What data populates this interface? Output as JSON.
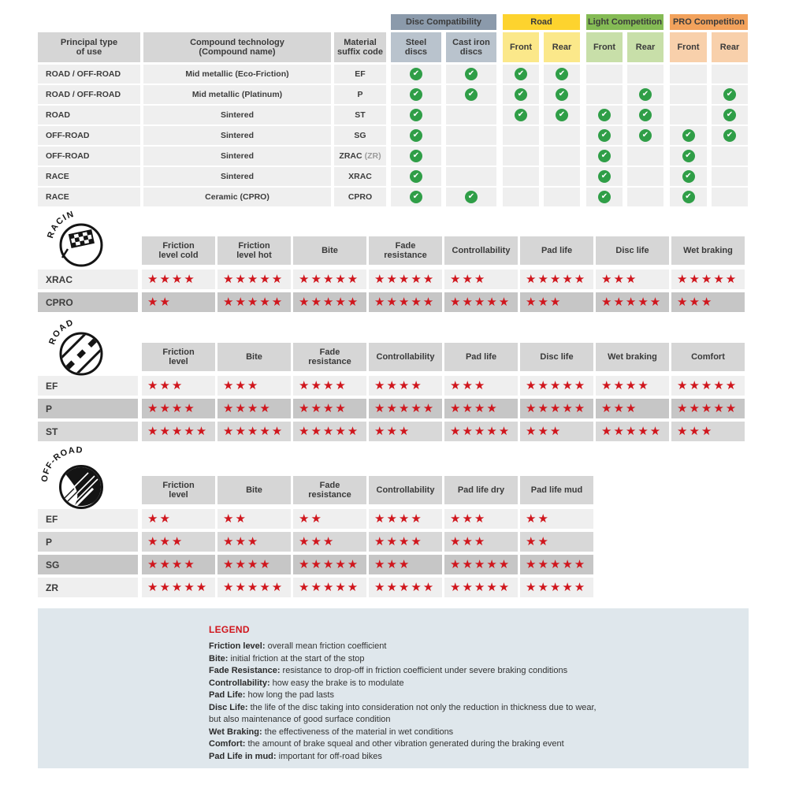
{
  "colors": {
    "star_red": "#d0161d",
    "check_green": "#2f9e47",
    "disc_group_bg": "#8b9aab",
    "disc_sub_bg": "#b9c3cd",
    "road_group_bg": "#fdd32e",
    "road_sub_bg": "#fbe88a",
    "light_group_bg": "#85bb55",
    "light_sub_bg": "#c8dfa9",
    "pro_group_bg": "#f2a25c",
    "pro_sub_bg": "#f8d0ab",
    "header_cell_bg": "#d6d6d6",
    "row_light_bg": "#efefef",
    "row_mid_bg": "#d8d8d8",
    "row_dark_bg": "#c6c6c6",
    "legend_bg": "#dfe7ec"
  },
  "compat": {
    "group_headers": [
      {
        "label": "Disc Compatibility"
      },
      {
        "label": "Road"
      },
      {
        "label": "Light Competition"
      },
      {
        "label": "PRO Competition"
      }
    ],
    "main_headers": [
      {
        "lines": [
          "Principal type",
          "of use"
        ]
      },
      {
        "lines": [
          "Compound technology",
          "(Compound name)"
        ]
      },
      {
        "lines": [
          "Material",
          "suffix code"
        ]
      }
    ],
    "sub_headers": [
      {
        "lines": [
          "Steel",
          "discs"
        ]
      },
      {
        "lines": [
          "Cast iron",
          "discs"
        ]
      },
      {
        "lines": [
          "Front"
        ]
      },
      {
        "lines": [
          "Rear"
        ]
      },
      {
        "lines": [
          "Front"
        ]
      },
      {
        "lines": [
          "Rear"
        ]
      },
      {
        "lines": [
          "Front"
        ]
      },
      {
        "lines": [
          "Rear"
        ]
      }
    ],
    "check_glyph": "✔",
    "rows": [
      {
        "use": "ROAD / OFF-ROAD",
        "technology": "Mid metallic (Eco-Friction)",
        "code": "EF",
        "code_note": "",
        "checks": [
          1,
          1,
          1,
          1,
          0,
          0,
          0,
          0
        ]
      },
      {
        "use": "ROAD / OFF-ROAD",
        "technology": "Mid metallic (Platinum)",
        "code": "P",
        "code_note": "",
        "checks": [
          1,
          1,
          1,
          1,
          0,
          1,
          0,
          1
        ]
      },
      {
        "use": "ROAD",
        "technology": "Sintered",
        "code": "ST",
        "code_note": "",
        "checks": [
          1,
          0,
          1,
          1,
          1,
          1,
          0,
          1
        ]
      },
      {
        "use": "OFF-ROAD",
        "technology": "Sintered",
        "code": "SG",
        "code_note": "",
        "checks": [
          1,
          0,
          0,
          0,
          1,
          1,
          1,
          1
        ]
      },
      {
        "use": "OFF-ROAD",
        "technology": "Sintered",
        "code": "ZRAC",
        "code_note": "(ZR)",
        "checks": [
          1,
          0,
          0,
          0,
          1,
          0,
          1,
          0
        ]
      },
      {
        "use": "RACE",
        "technology": "Sintered",
        "code": "XRAC",
        "code_note": "",
        "checks": [
          1,
          0,
          0,
          0,
          1,
          0,
          1,
          0
        ]
      },
      {
        "use": "RACE",
        "technology": "Ceramic (CPRO)",
        "code": "CPRO",
        "code_note": "",
        "checks": [
          1,
          1,
          0,
          0,
          1,
          0,
          1,
          0
        ]
      }
    ]
  },
  "rating_tables": [
    {
      "id": "racing",
      "badge": "RACING",
      "columns": [
        {
          "lines": [
            "Friction",
            "level cold"
          ]
        },
        {
          "lines": [
            "Friction",
            "level hot"
          ]
        },
        {
          "lines": [
            "Bite"
          ]
        },
        {
          "lines": [
            "Fade",
            "resistance"
          ]
        },
        {
          "lines": [
            "Controllability"
          ]
        },
        {
          "lines": [
            "Pad life"
          ]
        },
        {
          "lines": [
            "Disc life"
          ]
        },
        {
          "lines": [
            "Wet braking"
          ]
        }
      ],
      "max_stars": 5,
      "rows": [
        {
          "code": "XRAC",
          "shade": "light",
          "stars": [
            4,
            5,
            5,
            5,
            3,
            5,
            3,
            5
          ]
        },
        {
          "code": "CPRO",
          "shade": "dark",
          "stars": [
            2,
            5,
            5,
            5,
            5,
            3,
            5,
            3
          ]
        }
      ]
    },
    {
      "id": "road",
      "badge": "ROAD",
      "columns": [
        {
          "lines": [
            "Friction",
            "level"
          ]
        },
        {
          "lines": [
            "Bite"
          ]
        },
        {
          "lines": [
            "Fade",
            "resistance"
          ]
        },
        {
          "lines": [
            "Controllability"
          ]
        },
        {
          "lines": [
            "Pad life"
          ]
        },
        {
          "lines": [
            "Disc life"
          ]
        },
        {
          "lines": [
            "Wet braking"
          ]
        },
        {
          "lines": [
            "Comfort"
          ]
        }
      ],
      "max_stars": 5,
      "rows": [
        {
          "code": "EF",
          "shade": "light",
          "stars": [
            3,
            3,
            4,
            4,
            3,
            5,
            4,
            5
          ]
        },
        {
          "code": "P",
          "shade": "dark",
          "stars": [
            4,
            4,
            4,
            5,
            4,
            5,
            3,
            5
          ]
        },
        {
          "code": "ST",
          "shade": "mid",
          "stars": [
            5,
            5,
            5,
            3,
            5,
            3,
            5,
            3
          ]
        }
      ]
    },
    {
      "id": "offroad",
      "badge": "OFF-ROAD",
      "columns": [
        {
          "lines": [
            "Friction",
            "level"
          ]
        },
        {
          "lines": [
            "Bite"
          ]
        },
        {
          "lines": [
            "Fade",
            "resistance"
          ]
        },
        {
          "lines": [
            "Controllability"
          ]
        },
        {
          "lines": [
            "Pad life dry"
          ]
        },
        {
          "lines": [
            "Pad life mud"
          ]
        }
      ],
      "max_stars": 5,
      "rows": [
        {
          "code": "EF",
          "shade": "light",
          "stars": [
            2,
            2,
            2,
            4,
            3,
            2
          ]
        },
        {
          "code": "P",
          "shade": "mid",
          "stars": [
            3,
            3,
            3,
            4,
            3,
            2
          ]
        },
        {
          "code": "SG",
          "shade": "dark",
          "stars": [
            4,
            4,
            5,
            3,
            5,
            5
          ]
        },
        {
          "code": "ZR",
          "shade": "light",
          "stars": [
            5,
            5,
            5,
            5,
            5,
            5
          ]
        }
      ]
    }
  ],
  "legend": {
    "title": "LEGEND",
    "items": [
      {
        "term": "Friction level",
        "desc": "overall mean friction coefficient"
      },
      {
        "term": "Bite",
        "desc": "initial friction at the start of the stop"
      },
      {
        "term": "Fade Resistance",
        "desc": "resistance to drop-off in friction coefficient under severe braking conditions"
      },
      {
        "term": "Controllability",
        "desc": "how easy the brake is to modulate"
      },
      {
        "term": "Pad Life",
        "desc": "how long the pad lasts"
      },
      {
        "term": "Disc Life",
        "desc": "the life of the disc taking into consideration not only the reduction in thickness due to wear,"
      },
      {
        "term": "",
        "desc": "but also maintenance of good surface condition"
      },
      {
        "term": "Wet Braking",
        "desc": "the effectiveness of the material in wet conditions"
      },
      {
        "term": "Comfort",
        "desc": "the amount of brake squeal and other vibration generated during the braking event"
      },
      {
        "term": "Pad Life in mud",
        "desc": "important for off-road bikes"
      }
    ]
  }
}
